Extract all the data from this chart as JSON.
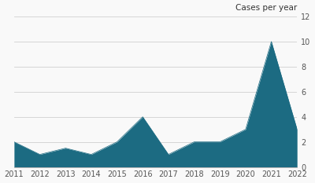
{
  "years": [
    2011,
    2012,
    2013,
    2014,
    2015,
    2016,
    2017,
    2018,
    2019,
    2020,
    2021,
    2022
  ],
  "values": [
    2,
    1,
    1.5,
    1,
    2,
    4,
    1,
    2,
    2,
    3,
    10,
    3
  ],
  "fill_color": "#1c6b82",
  "line_color": "#1c6b82",
  "background_color": "#f9f9f9",
  "ylabel": "Cases per year",
  "ylim": [
    0,
    12
  ],
  "yticks": [
    0,
    2,
    4,
    6,
    8,
    10,
    12
  ],
  "xlim": [
    2011,
    2022
  ],
  "xticks": [
    2011,
    2012,
    2013,
    2014,
    2015,
    2016,
    2017,
    2018,
    2019,
    2020,
    2021,
    2022
  ],
  "grid_color": "#d0d0d0",
  "tick_label_fontsize": 7,
  "ylabel_fontsize": 7.5
}
